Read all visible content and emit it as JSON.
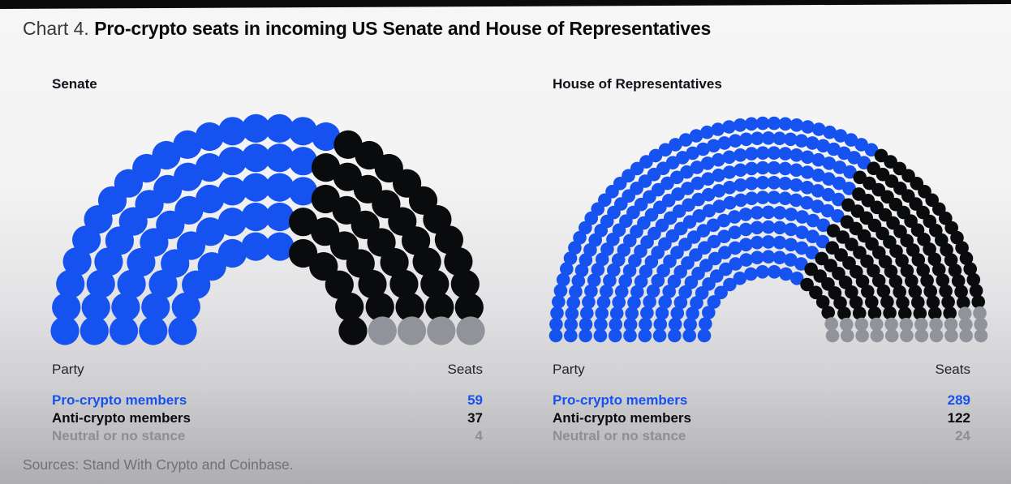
{
  "title": {
    "prefix": "Chart 4.",
    "main": "Pro-crypto seats in incoming US Senate and House of Representatives"
  },
  "legend": {
    "party_header": "Party",
    "seats_header": "Seats"
  },
  "source_note": "Sources: Stand With Crypto and Coinbase.",
  "colors": {
    "pro_crypto": "#1652f0",
    "anti_crypto": "#0a0b0d",
    "neutral": "#909399",
    "neutral_text": "#8c8f94",
    "top_bar": "#0b0b0c"
  },
  "chart_data": [
    {
      "type": "parliament",
      "title": "Senate",
      "total_seats": 100,
      "rows": 5,
      "series": [
        {
          "name": "Pro-crypto members",
          "value": 59,
          "color": "#1652f0"
        },
        {
          "name": "Anti-crypto members",
          "value": 37,
          "color": "#0a0b0d"
        },
        {
          "name": "Neutral or no stance",
          "value": 4,
          "color": "#909399"
        }
      ]
    },
    {
      "type": "parliament",
      "title": "House of Representatives",
      "total_seats": 435,
      "rows": 11,
      "series": [
        {
          "name": "Pro-crypto members",
          "value": 289,
          "color": "#1652f0"
        },
        {
          "name": "Anti-crypto members",
          "value": 122,
          "color": "#0a0b0d"
        },
        {
          "name": "Neutral or no stance",
          "value": 24,
          "color": "#909399"
        }
      ]
    }
  ]
}
